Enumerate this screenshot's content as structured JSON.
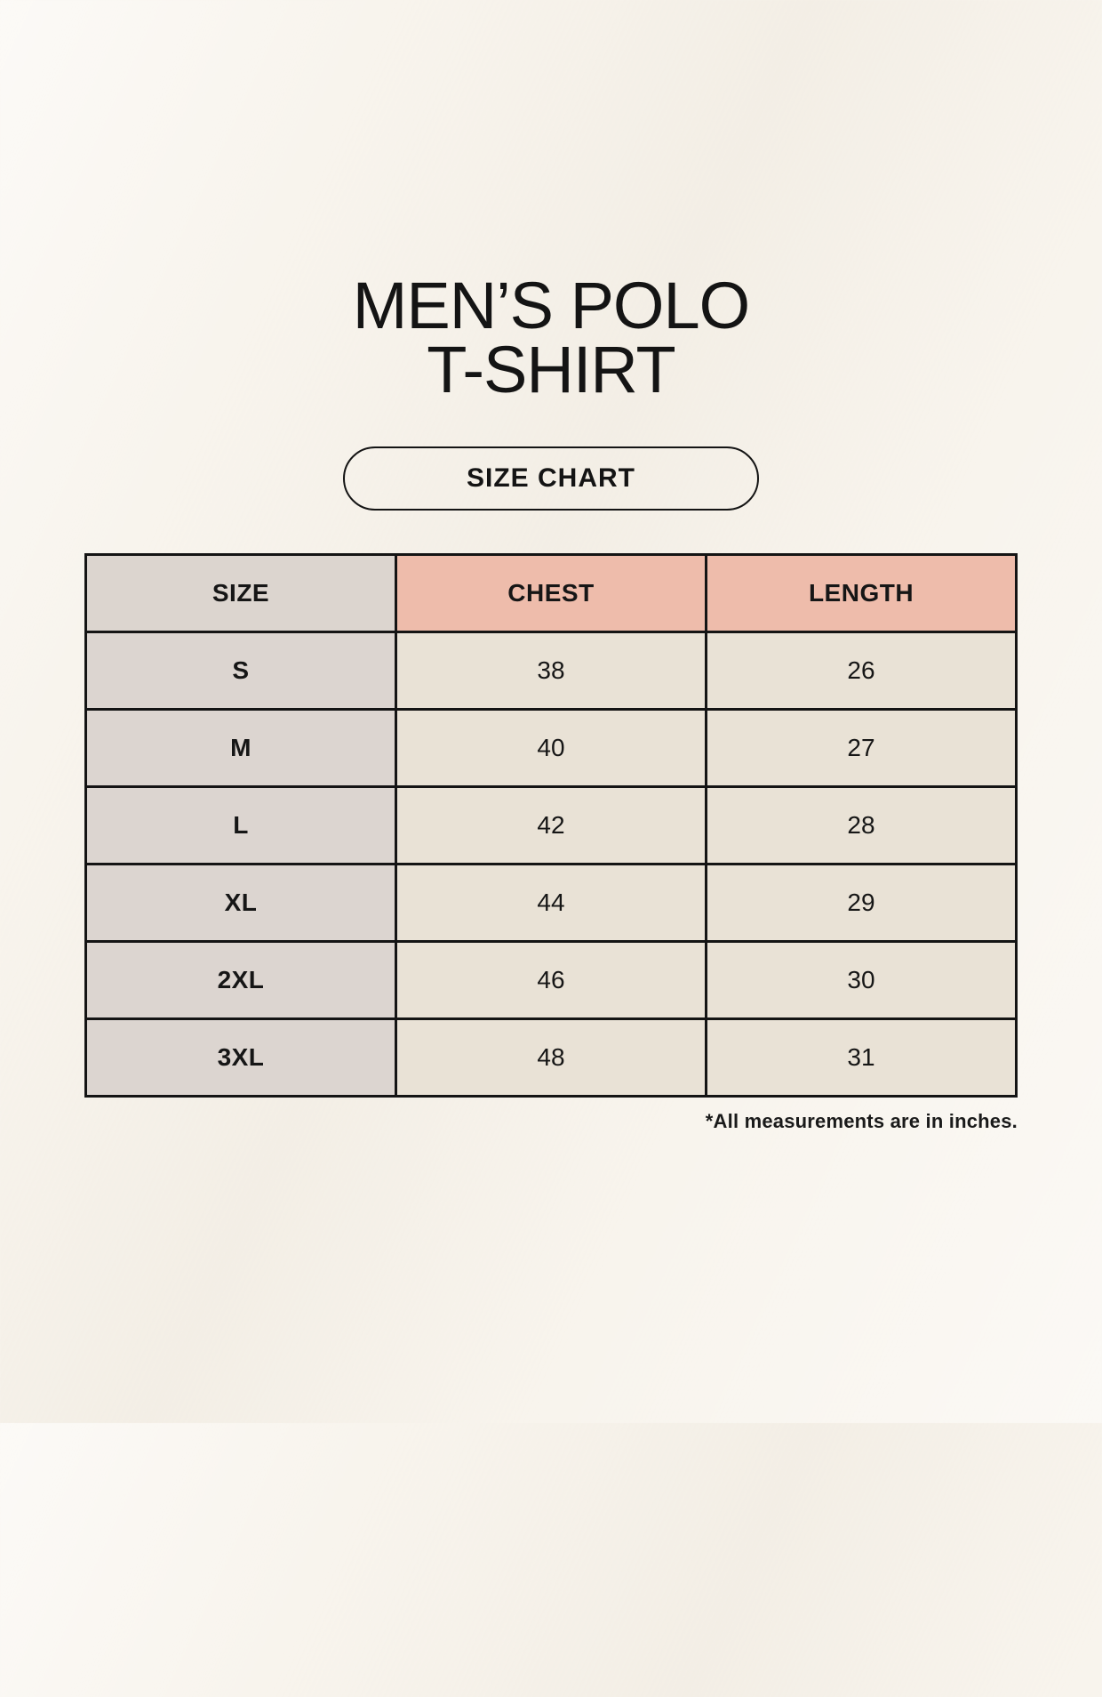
{
  "header": {
    "title_line1": "MEN’S POLO",
    "title_line2": "T-SHIRT",
    "badge_label": "SIZE CHART"
  },
  "table": {
    "headers": [
      "SIZE",
      "CHEST",
      "LENGTH"
    ],
    "rows": [
      {
        "size": "S",
        "chest": "38",
        "length": "26"
      },
      {
        "size": "M",
        "chest": "40",
        "length": "27"
      },
      {
        "size": "L",
        "chest": "42",
        "length": "28"
      },
      {
        "size": "XL",
        "chest": "44",
        "length": "29"
      },
      {
        "size": "2XL",
        "chest": "46",
        "length": "30"
      },
      {
        "size": "3XL",
        "chest": "48",
        "length": "31"
      }
    ]
  },
  "footer": {
    "note": "*All measurements are in inches."
  },
  "colors": {
    "background": "#f8f4ed",
    "header_size_bg": "#dcd5cf",
    "header_measure_bg": "#eebcab",
    "size_column_bg": "#dcd5d0",
    "value_cell_bg": "#e9e2d6",
    "border": "#141414",
    "text": "#161616"
  },
  "chart_data": {
    "type": "table",
    "title": "MEN’S POLO T-SHIRT — SIZE CHART",
    "columns": [
      "SIZE",
      "CHEST",
      "LENGTH"
    ],
    "rows": [
      [
        "S",
        38,
        26
      ],
      [
        "M",
        40,
        27
      ],
      [
        "L",
        42,
        28
      ],
      [
        "XL",
        44,
        29
      ],
      [
        "2XL",
        46,
        30
      ],
      [
        "3XL",
        48,
        31
      ]
    ],
    "units": "inches",
    "note": "*All measurements are in inches."
  }
}
